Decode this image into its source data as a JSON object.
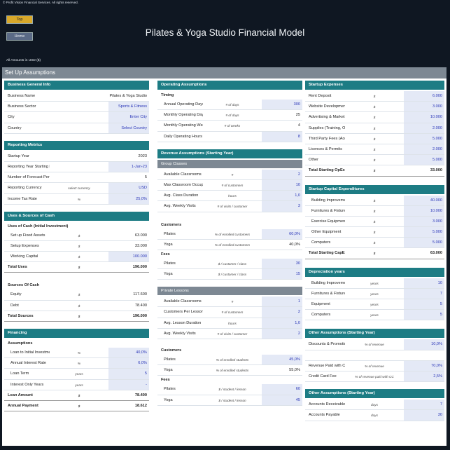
{
  "copyright": "© Profit Vision Financial Services. All rights reserved.",
  "nav": {
    "top_label": "Top",
    "home_label": "Home"
  },
  "title": "Pilates & Yoga Studio Financial Model",
  "amounts_note": "All Amounts in   USD ($)",
  "setup_title": "Set Up Assumptions",
  "business": {
    "title": "Business General Info",
    "rows": [
      {
        "label": "Business Name",
        "unit": "",
        "value": "Pilates & Yoga Studio",
        "input": false
      },
      {
        "label": "Business Sector",
        "unit": "",
        "value": "Sports & Fitness",
        "input": true
      },
      {
        "label": "City",
        "unit": "",
        "value": "Enter City",
        "input": true
      },
      {
        "label": "Country",
        "unit": "",
        "value": "Select Country",
        "input": true
      }
    ]
  },
  "reporting": {
    "title": "Reporting Metrics",
    "rows": [
      {
        "label": "Startup Year",
        "unit": "",
        "value": "2023",
        "input": false
      },
      {
        "label": "Reporting Year Starting Date",
        "unit": "",
        "value": "1-Jan-23",
        "input": true
      },
      {
        "label": "Number of Forecast Periods",
        "unit": "",
        "value": "5",
        "input": false
      },
      {
        "label": "Reporting Currency",
        "unit": "select currency",
        "value": "USD",
        "input": true
      },
      {
        "label": "Income Tax Rate",
        "unit": "%",
        "value": "25,0%",
        "input": true
      }
    ]
  },
  "uses_sources": {
    "title": "Uses & Sources of Cash",
    "uses_title": "Uses of Cash (Initial Investment)",
    "uses_rows": [
      {
        "label": "Set up Fixed Assets",
        "unit": "$",
        "value": "63.000",
        "input": false
      },
      {
        "label": "Setup Expenses",
        "unit": "$",
        "value": "33.000",
        "input": false
      },
      {
        "label": "Working Capital",
        "unit": "$",
        "value": "100.000",
        "input": true
      }
    ],
    "uses_total": {
      "label": "Total Uses",
      "unit": "$",
      "value": "196.000"
    },
    "sources_title": "Sources Of Cash",
    "sources_rows": [
      {
        "label": "Equity",
        "unit": "$",
        "value": "117.600",
        "input": false
      },
      {
        "label": "Debt",
        "unit": "$",
        "value": "78.400",
        "input": false
      }
    ],
    "sources_total": {
      "label": "Total Sources",
      "unit": "$",
      "value": "196.000"
    }
  },
  "financing": {
    "title": "Financing",
    "group": "Assumptions",
    "rows": [
      {
        "label": "Loan to Initial Investment",
        "unit": "%",
        "value": "40,0%",
        "input": true
      },
      {
        "label": "Annual Interest Rate",
        "unit": "%",
        "value": "6,0%",
        "input": true
      },
      {
        "label": "Loan Term",
        "unit": "years",
        "value": "5",
        "input": true
      },
      {
        "label": "Interest Only Years",
        "unit": "years",
        "value": "-",
        "input": true
      }
    ],
    "totals": [
      {
        "label": "Loan Amount",
        "unit": "$",
        "value": "78.400"
      },
      {
        "label": "Annual Payment",
        "unit": "$",
        "value": "18.612"
      }
    ]
  },
  "operating": {
    "title": "Operating Assumptions",
    "group": "Timing",
    "rows": [
      {
        "label": "Annual Operating Days",
        "unit": "# of days",
        "value": "300",
        "input": true
      },
      {
        "label": "Monthly Operating Days",
        "unit": "# of days",
        "value": "25",
        "input": false
      },
      {
        "label": "Monthly Operating Weeks",
        "unit": "# of weeks",
        "value": "4",
        "input": false
      },
      {
        "label": "Daily Operating Hours",
        "unit": "",
        "value": "8",
        "input": true
      }
    ]
  },
  "revenue": {
    "title": "Revenue Assumptions (Starting Year)",
    "group_classes": {
      "title": "Group Classes",
      "rows": [
        {
          "label": "Available Classrooms",
          "unit": "#",
          "value": "2",
          "input": true
        },
        {
          "label": "Max Classroom Occupancy",
          "unit": "# of customers",
          "value": "10",
          "input": true
        },
        {
          "label": "Avg. Class Duration",
          "unit": "hours",
          "value": "1,0",
          "input": true
        },
        {
          "label": "Avg. Weekly Visits",
          "unit": "# of visits / customer",
          "value": "3",
          "input": true
        }
      ],
      "customers_title": "Customers",
      "customers": [
        {
          "label": "Pilates",
          "unit": "% of enrolled customers",
          "value": "60,0%",
          "input": true
        },
        {
          "label": "Yoga",
          "unit": "% of enrolled customers",
          "value": "40,0%",
          "input": false
        }
      ],
      "fees_title": "Fees",
      "fees": [
        {
          "label": "Pilates",
          "unit": "$ / customer / class",
          "value": "30",
          "input": true
        },
        {
          "label": "Yoga",
          "unit": "$ / customer / class",
          "value": "15",
          "input": true
        }
      ]
    },
    "private": {
      "title": "Private Lessons",
      "rows": [
        {
          "label": "Available Classrooms",
          "unit": "#",
          "value": "1",
          "input": true
        },
        {
          "label": "Customers Per Lesson",
          "unit": "# of customers",
          "value": "2",
          "input": true
        },
        {
          "label": "Avg. Lesson Duration",
          "unit": "hours",
          "value": "1,0",
          "input": true
        },
        {
          "label": "Avg. Weekly Visits",
          "unit": "# of visits / customer",
          "value": "2",
          "input": true
        }
      ],
      "customers_title": "Customers",
      "customers": [
        {
          "label": "Pilates",
          "unit": "% of enrolled students",
          "value": "45,0%",
          "input": true
        },
        {
          "label": "Yoga",
          "unit": "% of enrolled students",
          "value": "55,0%",
          "input": false
        }
      ],
      "fees_title": "Fees",
      "fees": [
        {
          "label": "Pilates",
          "unit": "$ / student / lesson",
          "value": "60",
          "input": true
        },
        {
          "label": "Yoga",
          "unit": "$ / student / lesson",
          "value": "45",
          "input": true
        }
      ]
    }
  },
  "startup_expenses": {
    "title": "Startup Expenses",
    "rows": [
      {
        "label": "Rent Deposit",
        "unit": "$",
        "value": "6.000",
        "input": true
      },
      {
        "label": "Website Development",
        "unit": "$",
        "value": "3.000",
        "input": true
      },
      {
        "label": "Advertising & Marketing",
        "unit": "$",
        "value": "10.000",
        "input": true
      },
      {
        "label": "Supplies (Training, Office, etc.)",
        "unit": "$",
        "value": "2.000",
        "input": true
      },
      {
        "label": "Third Party Fees (Accountant, Legal, etc.)",
        "unit": "$",
        "value": "5.000",
        "input": true
      },
      {
        "label": "Licences & Permits",
        "unit": "$",
        "value": "2.000",
        "input": true
      },
      {
        "label": "Other",
        "unit": "$",
        "value": "5.000",
        "input": true
      }
    ],
    "total": {
      "label": "Total Starting OpEx",
      "unit": "$",
      "value": "33.000"
    }
  },
  "capex": {
    "title": "Startup Capital Expenditures",
    "rows": [
      {
        "label": "Building Improvements",
        "unit": "$",
        "value": "40.000",
        "input": true
      },
      {
        "label": "Furnitures & Fixtures",
        "unit": "$",
        "value": "10.000",
        "input": true
      },
      {
        "label": "Exercise Equipment",
        "unit": "$",
        "value": "3.000",
        "input": true
      },
      {
        "label": "Other Equipment",
        "unit": "$",
        "value": "5.000",
        "input": true
      },
      {
        "label": "Computers",
        "unit": "$",
        "value": "5.000",
        "input": true
      }
    ],
    "total": {
      "label": "Total Starting CapEx",
      "unit": "$",
      "value": "63.000"
    }
  },
  "depreciation": {
    "title": "Depreciation years",
    "rows": [
      {
        "label": "Building Improvements",
        "unit": "years",
        "value": "10",
        "input": true
      },
      {
        "label": "Furnitures & Fixtures",
        "unit": "years",
        "value": "7",
        "input": true
      },
      {
        "label": "Equipment",
        "unit": "years",
        "value": "5",
        "input": true
      },
      {
        "label": "Computers",
        "unit": "years",
        "value": "5",
        "input": true
      }
    ]
  },
  "other1": {
    "title": "Other Assumptions (Starting Year)",
    "rows": [
      {
        "label": "Discounts & Promotions",
        "unit": "% of revenue",
        "value": "10,0%",
        "input": true
      },
      {
        "label": "",
        "unit": "",
        "value": "",
        "input": false
      },
      {
        "label": "Revenue Paid with Credit Cards",
        "unit": "% of revenue",
        "value": "70,0%",
        "input": true
      },
      {
        "label": "Credit Card Fee",
        "unit": "% of revenue paid with CC",
        "value": "2,5%",
        "input": true
      }
    ]
  },
  "other2": {
    "title": "Other Assumptions (Starting Year)",
    "rows": [
      {
        "label": "Accounts Receivable",
        "unit": "days",
        "value": "7",
        "input": true
      },
      {
        "label": "Accounts Payable",
        "unit": "days",
        "value": "30",
        "input": true
      }
    ]
  },
  "colors": {
    "header_teal": "#1d7c84",
    "sub_gray": "#7d8893",
    "input_bg": "#e4e9f6",
    "input_text": "#2a36b8",
    "nav_top": "#d8a82a",
    "nav_home": "#5a6a86"
  }
}
